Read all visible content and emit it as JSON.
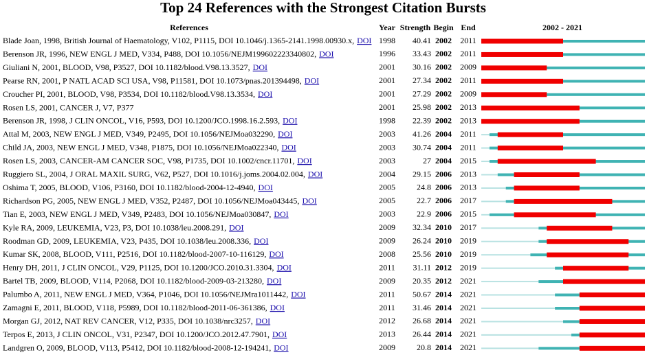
{
  "title": "Top 24 References with the Strongest Citation Bursts",
  "columns": [
    "References",
    "Year",
    "Strength",
    "Begin",
    "End"
  ],
  "timeline": {
    "start": 2002,
    "end": 2021
  },
  "rows": [
    {
      "reference": "Blade Joan, 1998, British Journal of Haematology, V102, P1115, DOI 10.1046/j.1365-2141.1998.00930.x,",
      "link": "DOI",
      "year": 1998,
      "strength": 40.41,
      "begin": 2002,
      "end": 2011
    },
    {
      "reference": "Berenson JR, 1996, NEW ENGL J MED, V334, P488, DOI 10.1056/NEJM199602223340802,",
      "link": "DOI",
      "year": 1996,
      "strength": 33.43,
      "begin": 2002,
      "end": 2011
    },
    {
      "reference": "Giuliani N, 2001, BLOOD, V98, P3527, DOI 10.1182/blood.V98.13.3527,",
      "link": "DOI",
      "year": 2001,
      "strength": 30.16,
      "begin": 2002,
      "end": 2009
    },
    {
      "reference": "Pearse RN, 2001, P NATL ACAD SCI USA, V98, P11581, DOI 10.1073/pnas.201394498,",
      "link": "DOI",
      "year": 2001,
      "strength": 27.34,
      "begin": 2002,
      "end": 2011
    },
    {
      "reference": "Croucher PI, 2001, BLOOD, V98, P3534, DOI 10.1182/blood.V98.13.3534,",
      "link": "DOI",
      "year": 2001,
      "strength": 27.29,
      "begin": 2002,
      "end": 2009
    },
    {
      "reference": "Rosen LS, 2001, CANCER J, V7, P377",
      "year": 2001,
      "strength": 25.98,
      "begin": 2002,
      "end": 2013
    },
    {
      "reference": "Berenson JR, 1998, J CLIN ONCOL, V16, P593, DOI 10.1200/JCO.1998.16.2.593,",
      "link": "DOI",
      "year": 1998,
      "strength": 22.39,
      "begin": 2002,
      "end": 2013
    },
    {
      "reference": "Attal M, 2003, NEW ENGL J MED, V349, P2495, DOI 10.1056/NEJMoa032290,",
      "link": "DOI",
      "year": 2003,
      "strength": 41.26,
      "begin": 2004,
      "end": 2011
    },
    {
      "reference": "Child JA, 2003, NEW ENGL J MED, V348, P1875, DOI 10.1056/NEJMoa022340,",
      "link": "DOI",
      "year": 2003,
      "strength": 30.74,
      "begin": 2004,
      "end": 2011
    },
    {
      "reference": "Rosen LS, 2003, CANCER-AM CANCER SOC, V98, P1735, DOI 10.1002/cncr.11701,",
      "link": "DOI",
      "year": 2003,
      "strength": 27,
      "begin": 2004,
      "end": 2015
    },
    {
      "reference": "Ruggiero SL, 2004, J ORAL MAXIL SURG, V62, P527, DOI 10.1016/j.joms.2004.02.004,",
      "link": "DOI",
      "year": 2004,
      "strength": 29.15,
      "begin": 2006,
      "end": 2013
    },
    {
      "reference": "Oshima T, 2005, BLOOD, V106, P3160, DOI 10.1182/blood-2004-12-4940,",
      "link": "DOI",
      "year": 2005,
      "strength": 24.8,
      "begin": 2006,
      "end": 2013
    },
    {
      "reference": "Richardson PG, 2005, NEW ENGL J MED, V352, P2487, DOI 10.1056/NEJMoa043445,",
      "link": "DOI",
      "year": 2005,
      "strength": 22.7,
      "begin": 2006,
      "end": 2017
    },
    {
      "reference": "Tian E, 2003, NEW ENGL J MED, V349, P2483, DOI 10.1056/NEJMoa030847,",
      "link": "DOI",
      "year": 2003,
      "strength": 22.9,
      "begin": 2006,
      "end": 2015
    },
    {
      "reference": "Kyle RA, 2009, LEUKEMIA, V23, P3, DOI 10.1038/leu.2008.291,",
      "link": "DOI",
      "year": 2009,
      "strength": 32.34,
      "begin": 2010,
      "end": 2017
    },
    {
      "reference": "Roodman GD, 2009, LEUKEMIA, V23, P435, DOI 10.1038/leu.2008.336,",
      "link": "DOI",
      "year": 2009,
      "strength": 26.24,
      "begin": 2010,
      "end": 2019
    },
    {
      "reference": "Kumar SK, 2008, BLOOD, V111, P2516, DOI 10.1182/blood-2007-10-116129,",
      "link": "DOI",
      "year": 2008,
      "strength": 25.56,
      "begin": 2010,
      "end": 2019
    },
    {
      "reference": "Henry DH, 2011, J CLIN ONCOL, V29, P1125, DOI 10.1200/JCO.2010.31.3304,",
      "link": "DOI",
      "year": 2011,
      "strength": 31.11,
      "begin": 2012,
      "end": 2019
    },
    {
      "reference": "Bartel TB, 2009, BLOOD, V114, P2068, DOI 10.1182/blood-2009-03-213280,",
      "link": "DOI",
      "year": 2009,
      "strength": 20.35,
      "begin": 2012,
      "end": 2021
    },
    {
      "reference": "Palumbo A, 2011, NEW ENGL J MED, V364, P1046, DOI 10.1056/NEJMra1011442,",
      "link": "DOI",
      "year": 2011,
      "strength": 50.67,
      "begin": 2014,
      "end": 2021
    },
    {
      "reference": "Zamagni E, 2011, BLOOD, V118, P5989, DOI 10.1182/blood-2011-06-361386,",
      "link": "DOI",
      "year": 2011,
      "strength": 31.46,
      "begin": 2014,
      "end": 2021
    },
    {
      "reference": "Morgan GJ, 2012, NAT REV CANCER, V12, P335, DOI 10.1038/nrc3257,",
      "link": "DOI",
      "year": 2012,
      "strength": 26.68,
      "begin": 2014,
      "end": 2021
    },
    {
      "reference": "Terpos E, 2013, J CLIN ONCOL, V31, P2347, DOI 10.1200/JCO.2012.47.7901,",
      "link": "DOI",
      "year": 2013,
      "strength": 26.44,
      "begin": 2014,
      "end": 2021
    },
    {
      "reference": "Landgren O, 2009, BLOOD, V113, P5412, DOI 10.1182/blood-2008-12-194241,",
      "link": "DOI",
      "year": 2009,
      "strength": 20.8,
      "begin": 2014,
      "end": 2021
    }
  ]
}
